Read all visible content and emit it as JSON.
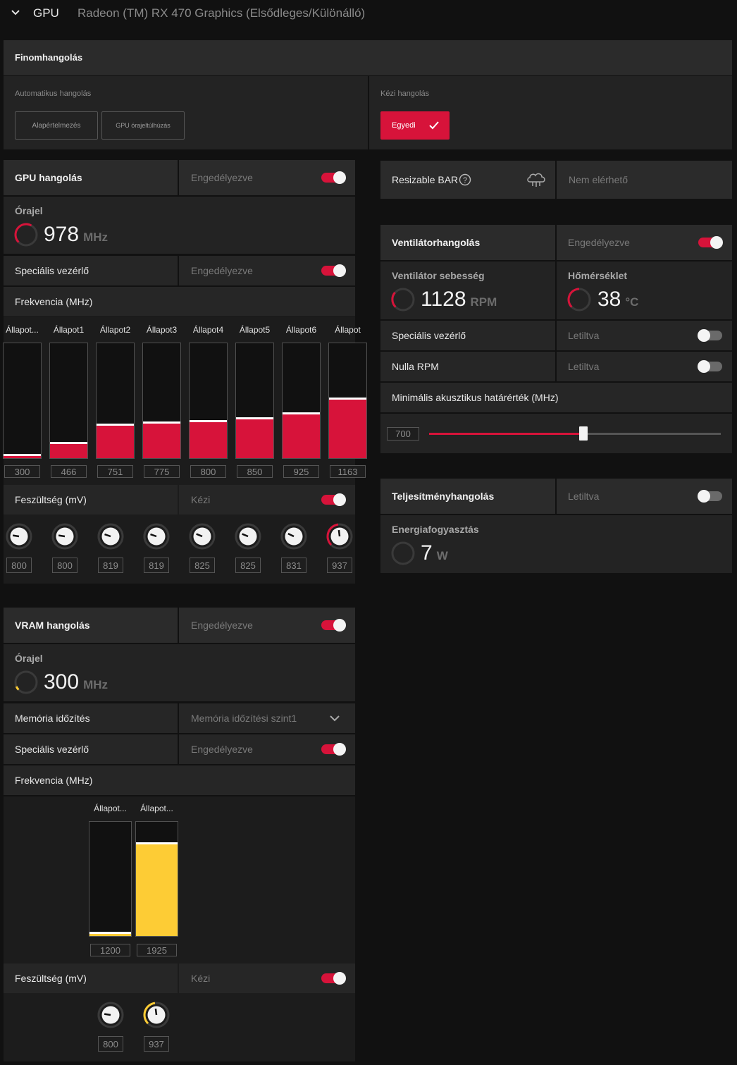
{
  "header": {
    "section": "GPU",
    "device": "Radeon (TM) RX 470 Graphics (Elsődleges/Különálló)"
  },
  "fine_tune": {
    "title": "Finomhangolás",
    "auto_label": "Automatikus hangolás",
    "auto_buttons": [
      "Alapértelmezés",
      "GPU órajeltúlhúzás"
    ],
    "manual_label": "Kézi hangolás",
    "manual_button": "Egyedi"
  },
  "gpu_tuning": {
    "title": "GPU hangolás",
    "status": "Engedélyezve",
    "enabled": true,
    "clock_label": "Órajel",
    "clock_value": "978",
    "clock_unit": "MHz",
    "adv_label": "Speciális vezérlő",
    "adv_status": "Engedélyezve",
    "freq_label": "Frekvencia (MHz)",
    "states": [
      {
        "label": "Állapot...",
        "freq": "300",
        "level": 0.02
      },
      {
        "label": "Állapot1",
        "freq": "466",
        "level": 0.12
      },
      {
        "label": "Állapot2",
        "freq": "751",
        "level": 0.28
      },
      {
        "label": "Állapot3",
        "freq": "775",
        "level": 0.3
      },
      {
        "label": "Állapot4",
        "freq": "800",
        "level": 0.31
      },
      {
        "label": "Állapot5",
        "freq": "850",
        "level": 0.34
      },
      {
        "label": "Állapot6",
        "freq": "925",
        "level": 0.38
      },
      {
        "label": "Állapot",
        "freq": "1163",
        "level": 0.51
      }
    ],
    "voltage_label": "Feszültség (mV)",
    "voltage_mode": "Kézi",
    "voltages": [
      "800",
      "800",
      "819",
      "819",
      "825",
      "825",
      "831",
      "937"
    ]
  },
  "vram_tuning": {
    "title": "VRAM hangolás",
    "status": "Engedélyezve",
    "clock_label": "Órajel",
    "clock_value": "300",
    "clock_unit": "MHz",
    "timing_label": "Memória időzítés",
    "timing_value": "Memória időzítési szint1",
    "adv_label": "Speciális vezérlő",
    "adv_status": "Engedélyezve",
    "freq_label": "Frekvencia (MHz)",
    "states": [
      {
        "label": "Állapot...",
        "freq": "1200",
        "level": 0.02
      },
      {
        "label": "Állapot...",
        "freq": "1925",
        "level": 0.8
      }
    ],
    "voltage_label": "Feszültség (mV)",
    "voltage_mode": "Kézi",
    "voltages": [
      "800",
      "937"
    ]
  },
  "resizable_bar": {
    "label": "Resizable BAR",
    "status": "Nem elérhető"
  },
  "fan_tuning": {
    "title": "Ventilátorhangolás",
    "status": "Engedélyezve",
    "speed_label": "Ventilátor sebesség",
    "speed_value": "1128",
    "speed_unit": "RPM",
    "temp_label": "Hőmérséklet",
    "temp_value": "38",
    "temp_unit": "°C",
    "adv_label": "Speciális vezérlő",
    "adv_status": "Letiltva",
    "zero_label": "Nulla RPM",
    "zero_status": "Letiltva",
    "min_label": "Minimális akusztikus határérték (MHz)",
    "min_value": "700",
    "min_level": 0.53
  },
  "perf_tuning": {
    "title": "Teljesítményhangolás",
    "status": "Letiltva",
    "power_label": "Energiafogyasztás",
    "power_value": "7",
    "power_unit": "W"
  },
  "colors": {
    "accent": "#d7133a",
    "vram": "#fdcc35"
  }
}
